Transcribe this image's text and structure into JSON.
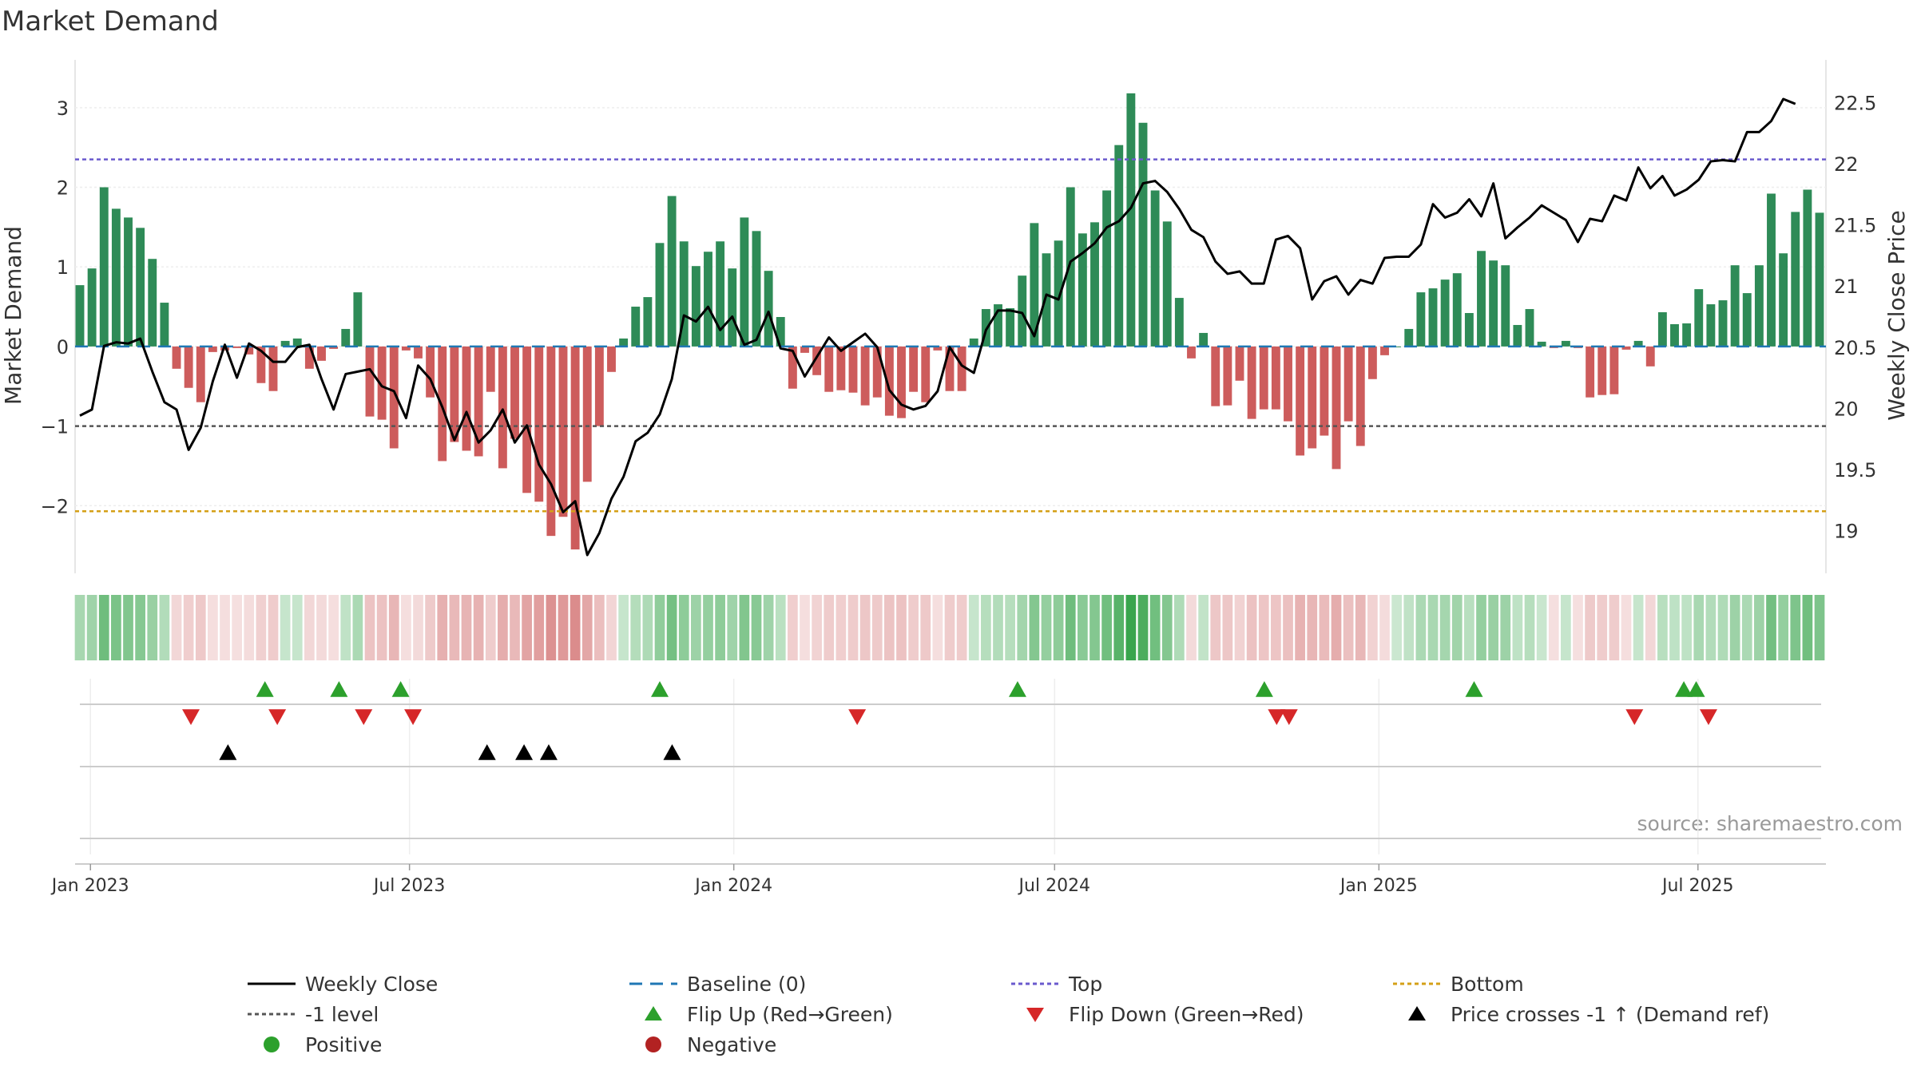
{
  "colors": {
    "positive": "#2e8b57",
    "negative": "#cd5c5c",
    "price": "#000000",
    "baseline": "#1f77b4",
    "top": "#6a5acd",
    "bottom": "#d4a017",
    "minus1": "#555555",
    "flip_up": "#2ca02c",
    "flip_down": "#d62728",
    "cross": "#000000",
    "legend_positive": "#2ca02c",
    "legend_negative": "#b22222",
    "title": "#333333",
    "source": "#999999"
  },
  "chart_data": {
    "type": "bar",
    "title": "Market Demand",
    "ylabel": "Market Demand",
    "y2label": "Weekly Close Price",
    "source": "source: sharemaestro.com",
    "ylim": [
      -2.85,
      3.6
    ],
    "y2lim": [
      18.65,
      22.85
    ],
    "yticks": [
      "3",
      "2",
      "1",
      "0",
      "−1",
      "−2"
    ],
    "y2ticks": [
      "22.5",
      "22",
      "21.5",
      "21",
      "20.5",
      "20",
      "19.5",
      "19"
    ],
    "x_start": "2022-12-26",
    "x_end": "2025-09-08",
    "xticks": [
      {
        "date": "2023-01-01",
        "label": "Jan 2023"
      },
      {
        "date": "2023-07-01",
        "label": "Jul 2023"
      },
      {
        "date": "2024-01-01",
        "label": "Jan 2024"
      },
      {
        "date": "2024-07-01",
        "label": "Jul 2024"
      },
      {
        "date": "2025-01-01",
        "label": "Jan 2025"
      },
      {
        "date": "2025-07-01",
        "label": "Jul 2025"
      }
    ],
    "reference_lines": {
      "top": 2.35,
      "minus1": -1.0,
      "bottom": -2.07,
      "baseline": 0
    },
    "series": [
      {
        "name": "Market Demand",
        "values": [
          0.77,
          0.98,
          2.0,
          1.73,
          1.62,
          1.49,
          1.1,
          0.55,
          -0.28,
          -0.52,
          -0.7,
          -0.07,
          -0.05,
          -0.02,
          -0.1,
          -0.46,
          -0.56,
          0.07,
          0.1,
          -0.28,
          -0.18,
          -0.03,
          0.22,
          0.68,
          -0.88,
          -0.92,
          -1.28,
          -0.05,
          -0.15,
          -0.64,
          -1.44,
          -1.2,
          -1.31,
          -1.38,
          -0.57,
          -1.53,
          -1.16,
          -1.84,
          -1.95,
          -2.38,
          -2.14,
          -2.55,
          -1.7,
          -1.0,
          -0.32,
          0.1,
          0.5,
          0.62,
          1.3,
          1.89,
          1.32,
          1.01,
          1.19,
          1.32,
          0.98,
          1.62,
          1.45,
          0.95,
          0.37,
          -0.53,
          -0.08,
          -0.36,
          -0.57,
          -0.55,
          -0.58,
          -0.74,
          -0.64,
          -0.87,
          -0.9,
          -0.57,
          -0.7,
          -0.05,
          -0.56,
          -0.56,
          0.1,
          0.47,
          0.53,
          0.48,
          0.89,
          1.55,
          1.17,
          1.33,
          2.0,
          1.42,
          1.56,
          1.96,
          2.53,
          3.18,
          2.81,
          1.96,
          1.57,
          0.61,
          -0.15,
          0.17,
          -0.75,
          -0.74,
          -0.43,
          -0.91,
          -0.79,
          -0.79,
          -0.94,
          -1.37,
          -1.28,
          -1.12,
          -1.54,
          -0.94,
          -1.25,
          -0.41,
          -0.11,
          0.0,
          0.22,
          0.68,
          0.73,
          0.84,
          0.92,
          0.42,
          1.2,
          1.08,
          1.02,
          0.27,
          0.47,
          0.06,
          -0.02,
          0.07,
          -0.02,
          -0.64,
          -0.61,
          -0.6,
          -0.04,
          0.07,
          -0.25,
          0.43,
          0.28,
          0.29,
          0.72,
          0.53,
          0.58,
          1.02,
          0.67,
          1.02,
          1.92,
          1.17,
          1.69,
          1.97,
          1.68
        ]
      },
      {
        "name": "Weekly Close",
        "values": [
          19.94,
          19.99,
          20.51,
          20.54,
          20.53,
          20.57,
          20.3,
          20.05,
          19.99,
          19.66,
          19.84,
          20.22,
          20.52,
          20.25,
          20.53,
          20.47,
          20.38,
          20.38,
          20.5,
          20.52,
          20.24,
          19.99,
          20.28,
          20.3,
          20.32,
          20.18,
          20.14,
          19.92,
          20.35,
          20.24,
          20.01,
          19.74,
          19.97,
          19.72,
          19.82,
          19.99,
          19.72,
          19.86,
          19.54,
          19.38,
          19.15,
          19.24,
          18.8,
          18.98,
          19.26,
          19.44,
          19.73,
          19.8,
          19.95,
          20.24,
          20.76,
          20.71,
          20.83,
          20.64,
          20.75,
          20.52,
          20.56,
          20.79,
          20.49,
          20.47,
          20.26,
          20.42,
          20.58,
          20.47,
          20.54,
          20.61,
          20.5,
          20.15,
          20.03,
          19.99,
          20.02,
          20.14,
          20.5,
          20.35,
          20.29,
          20.64,
          20.8,
          20.8,
          20.78,
          20.59,
          20.93,
          20.89,
          21.2,
          21.27,
          21.35,
          21.48,
          21.53,
          21.64,
          21.84,
          21.86,
          21.77,
          21.63,
          21.46,
          21.4,
          21.2,
          21.1,
          21.12,
          21.02,
          21.02,
          21.38,
          21.41,
          21.31,
          20.89,
          21.04,
          21.08,
          20.93,
          21.05,
          21.02,
          21.23,
          21.24,
          21.24,
          21.34,
          21.67,
          21.56,
          21.6,
          21.71,
          21.57,
          21.84,
          21.39,
          21.48,
          21.56,
          21.66,
          21.6,
          21.54,
          21.36,
          21.55,
          21.53,
          21.74,
          21.7,
          21.97,
          21.8,
          21.9,
          21.74,
          21.79,
          21.87,
          22.02,
          22.03,
          22.02,
          22.26,
          22.26,
          22.35,
          22.53,
          22.49
        ]
      }
    ],
    "heatstrip_note": "one cell per week, shade follows Market Demand sign and magnitude",
    "events": {
      "flip_up": [
        "2023-04-10",
        "2023-05-22",
        "2023-06-26",
        "2023-11-20",
        "2024-06-10",
        "2024-10-28",
        "2025-02-24",
        "2025-06-23",
        "2025-06-30"
      ],
      "flip_down": [
        "2023-02-27",
        "2023-04-17",
        "2023-06-05",
        "2023-07-03",
        "2024-03-11",
        "2024-11-04",
        "2024-11-11",
        "2025-05-26",
        "2025-07-07"
      ],
      "price_cross": [
        "2023-03-20",
        "2023-08-14",
        "2023-09-04",
        "2023-09-18",
        "2023-11-27"
      ]
    },
    "legend": [
      {
        "key": "weekly_close",
        "label": "Weekly Close"
      },
      {
        "key": "baseline",
        "label": "Baseline (0)"
      },
      {
        "key": "top",
        "label": "Top"
      },
      {
        "key": "bottom",
        "label": "Bottom"
      },
      {
        "key": "minus1",
        "label": "-1 level"
      },
      {
        "key": "flip_up",
        "label": "Flip Up (Red→Green)"
      },
      {
        "key": "flip_down",
        "label": "Flip Down (Green→Red)"
      },
      {
        "key": "price_cross",
        "label": "Price crosses -1 ↑ (Demand ref)"
      },
      {
        "key": "positive",
        "label": "Positive"
      },
      {
        "key": "negative",
        "label": "Negative"
      }
    ]
  }
}
